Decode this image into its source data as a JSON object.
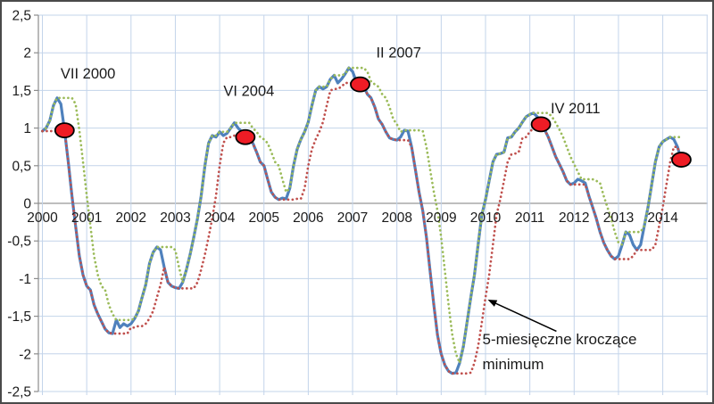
{
  "chart_data": {
    "type": "line",
    "title": "",
    "frequency": "monthly",
    "x_start_year": 2000,
    "xlim": [
      1999.9,
      15.02
    ],
    "ylim": [
      -2.5,
      2.5
    ],
    "grid": true,
    "legend": "none",
    "x_labels": [
      "2000",
      "2001",
      "2002",
      "2003",
      "2004",
      "2005",
      "2006",
      "2007",
      "2008",
      "2009",
      "2010",
      "2011",
      "2012",
      "2013",
      "2014"
    ],
    "y_tick_labels": [
      "2,5",
      "2",
      "1,5",
      "1",
      "0,5",
      "0",
      "-0,5",
      "-1",
      "-1,5",
      "-2",
      "-2,5"
    ],
    "y_tick_values": [
      2.5,
      2,
      1.5,
      1,
      0.5,
      0,
      -0.5,
      -1,
      -1.5,
      -2,
      -2.5
    ],
    "series": {
      "main": {
        "style": "solid",
        "values": [
          0.96,
          1.0,
          1.1,
          1.3,
          1.4,
          1.32,
          0.97,
          0.55,
          0.1,
          -0.3,
          -0.7,
          -0.95,
          -1.1,
          -1.15,
          -1.35,
          -1.47,
          -1.57,
          -1.67,
          -1.72,
          -1.73,
          -1.55,
          -1.65,
          -1.6,
          -1.63,
          -1.6,
          -1.53,
          -1.43,
          -1.25,
          -1.08,
          -0.8,
          -0.65,
          -0.58,
          -0.62,
          -0.85,
          -1.05,
          -1.1,
          -1.12,
          -1.13,
          -1.05,
          -0.88,
          -0.68,
          -0.45,
          -0.2,
          0.1,
          0.5,
          0.8,
          0.9,
          0.88,
          0.95,
          0.9,
          0.93,
          1.0,
          1.07,
          1.0,
          0.95,
          0.88,
          0.85,
          0.8,
          0.68,
          0.55,
          0.5,
          0.32,
          0.15,
          0.08,
          0.05,
          0.07,
          0.06,
          0.2,
          0.5,
          0.72,
          0.85,
          0.95,
          1.08,
          1.3,
          1.5,
          1.55,
          1.52,
          1.55,
          1.65,
          1.7,
          1.6,
          1.65,
          1.72,
          1.8,
          1.75,
          1.62,
          1.58,
          1.55,
          1.45,
          1.4,
          1.28,
          1.12,
          1.05,
          0.95,
          0.87,
          0.85,
          0.84,
          0.88,
          0.97,
          0.96,
          0.75,
          0.45,
          0.15,
          -0.1,
          -0.45,
          -0.9,
          -1.35,
          -1.75,
          -2.0,
          -2.15,
          -2.23,
          -2.26,
          -2.25,
          -2.12,
          -1.9,
          -1.58,
          -1.25,
          -0.95,
          -0.55,
          -0.15,
          0.05,
          0.3,
          0.55,
          0.65,
          0.66,
          0.68,
          0.87,
          0.88,
          0.95,
          1.0,
          1.08,
          1.15,
          1.18,
          1.2,
          1.15,
          1.07,
          0.98,
          0.88,
          0.75,
          0.62,
          0.52,
          0.42,
          0.3,
          0.25,
          0.27,
          0.32,
          0.3,
          0.27,
          0.1,
          -0.05,
          -0.2,
          -0.38,
          -0.52,
          -0.62,
          -0.7,
          -0.74,
          -0.7,
          -0.55,
          -0.38,
          -0.42,
          -0.55,
          -0.62,
          -0.55,
          -0.3,
          -0.05,
          0.25,
          0.55,
          0.75,
          0.82,
          0.85,
          0.88,
          0.85,
          0.75,
          0.58
        ]
      },
      "derived": [
        {
          "op": "rolling_max",
          "window_months": 5,
          "style": "dotted",
          "color_key": "line_max"
        },
        {
          "op": "rolling_min",
          "window_months": 5,
          "style": "dotted",
          "color_key": "line_min"
        }
      ]
    },
    "markers": [
      {
        "label": "VII 2000",
        "x": 2000.5,
        "y": 0.97,
        "label_x": 2001.03,
        "label_y": 1.73
      },
      {
        "label": "VI 2004",
        "x": 2004.58,
        "y": 0.88,
        "label_x": 2004.66,
        "label_y": 1.5
      },
      {
        "label": "II 2007",
        "x": 2007.17,
        "y": 1.58,
        "label_x": 2008.04,
        "label_y": 2.01
      },
      {
        "label": "IV 2011",
        "x": 2011.25,
        "y": 1.05,
        "label_x": 2012.03,
        "label_y": 1.27
      },
      {
        "label": "",
        "x": 2014.42,
        "y": 0.58,
        "label_x": 0,
        "label_y": 0
      }
    ],
    "callout": {
      "lines": [
        "5-miesięczne kroczące",
        "minimum"
      ],
      "text_anchor": {
        "x": 2009.93,
        "y": -1.87
      },
      "arrow_tail": {
        "x": 2011.6,
        "y": -1.7
      },
      "arrow_head": {
        "x": 2010.05,
        "y": -1.28
      }
    },
    "colors": {
      "line_main": "#4F81BD",
      "line_max": "#9BBB59",
      "line_min": "#C0504D",
      "marker_fill": "#EE1C25",
      "marker_stroke": "#000000",
      "gridline": "#C3D4EA",
      "zero_line": "#969696",
      "axis": "#8C8C8C",
      "text": "#1A1A1A",
      "border": "#4A4A4A"
    }
  }
}
